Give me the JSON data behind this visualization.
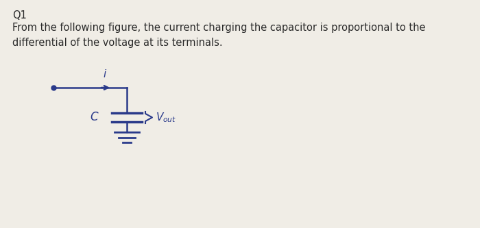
{
  "background_color": "#f0ede6",
  "text_color": "#2a2a2a",
  "circuit_color": "#2a3a8a",
  "title": "Q1",
  "body_text": "From the following figure, the current charging the capacitor is proportional to the\ndifferential of the voltage at its terminals.",
  "title_fontsize": 10.5,
  "body_fontsize": 10.5,
  "figwidth": 7.0,
  "figheight": 3.33,
  "dpi": 100
}
